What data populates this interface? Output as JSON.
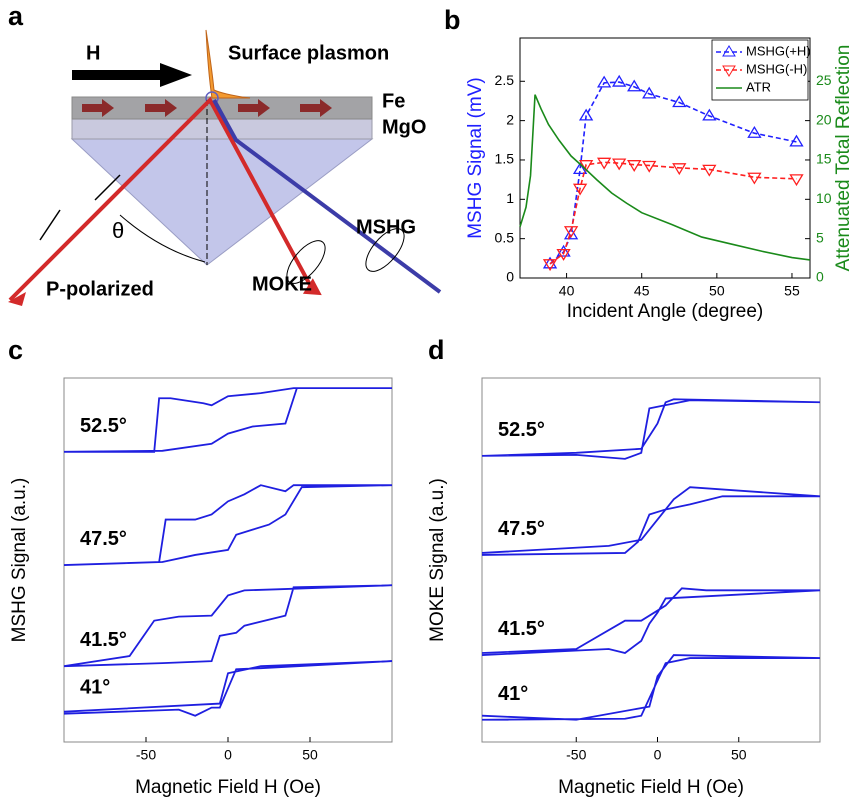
{
  "panel_labels": [
    "a",
    "b",
    "c",
    "d"
  ],
  "diagram": {
    "field": "H",
    "plasmon": "Surface plasmon",
    "film": "Fe",
    "substrate": "MgO",
    "angle": "θ",
    "shg_beam": "MSHG",
    "moke_beam": "MOKE",
    "input_beam": "P-polarized"
  },
  "chart_data": [
    {
      "type": "line",
      "xlabel": "Incident Angle (degree)",
      "ylabel": "MSHG Signal (mV)",
      "y2label": "Attenuated Total Reflection",
      "ylabel_color": "#2020ff",
      "y2label_color": "#1a8a1a",
      "xlim": [
        36.9,
        56.2
      ],
      "xticks": [
        40,
        45,
        50,
        55
      ],
      "ylim": [
        0,
        3.05
      ],
      "yticks": [
        0,
        0.5,
        1,
        1.5,
        2,
        2.5
      ],
      "y2lim": [
        0,
        30.5
      ],
      "y2ticks": [
        0,
        5,
        10,
        15,
        20,
        25
      ],
      "legend": "upper right",
      "series": [
        {
          "name": "MSHG(+H)",
          "color": "#2020ff",
          "linestyle": "dashed",
          "marker": "triangle-up",
          "x": [
            38.9,
            39.8,
            40.3,
            40.9,
            41.3,
            42.5,
            43.5,
            44.5,
            45.5,
            47.5,
            49.5,
            52.5,
            55.3
          ],
          "values": [
            0.18,
            0.33,
            0.55,
            1.38,
            2.06,
            2.48,
            2.49,
            2.43,
            2.34,
            2.23,
            2.06,
            1.84,
            1.73
          ]
        },
        {
          "name": "MSHG(-H)",
          "color": "#ff2020",
          "linestyle": "dashed",
          "marker": "triangle-down",
          "x": [
            38.9,
            39.8,
            40.3,
            40.9,
            41.3,
            42.5,
            43.5,
            44.5,
            45.5,
            47.5,
            49.5,
            52.5,
            55.3
          ],
          "values": [
            0.18,
            0.31,
            0.6,
            1.14,
            1.44,
            1.47,
            1.46,
            1.44,
            1.43,
            1.4,
            1.38,
            1.28,
            1.26
          ]
        },
        {
          "name": "ATR",
          "color": "#1a8a1a",
          "linestyle": "solid",
          "axis": "y2",
          "x": [
            36.9,
            37.3,
            37.6,
            37.9,
            38.3,
            38.8,
            39.5,
            40.3,
            41,
            42,
            43,
            44,
            45,
            47,
            49,
            51,
            53,
            55,
            56.2
          ],
          "values": [
            6.5,
            9,
            13,
            23.3,
            21.5,
            19.5,
            17.5,
            15.5,
            14.3,
            12.5,
            10.8,
            9.5,
            8.3,
            6.8,
            5.2,
            4.3,
            3.4,
            2.6,
            2.3
          ]
        }
      ]
    },
    {
      "type": "line",
      "xlabel": "Magnetic Field H (Oe)",
      "ylabel": "MSHG Signal (a.u.)",
      "xlim": [
        -100,
        100
      ],
      "xticks": [
        -50,
        0,
        50
      ],
      "ylim": [
        0,
        36
      ],
      "series": [
        {
          "name": "52.5°",
          "color": "#1f1fe0",
          "linestyle": "solid",
          "x": [
            -100,
            -40,
            -10,
            0,
            15,
            35,
            42,
            100,
            40,
            20,
            0,
            -10,
            -15,
            -35,
            -42,
            -45,
            -100
          ],
          "values": [
            28.7,
            28.8,
            29.5,
            30.5,
            31.2,
            31.5,
            35,
            35,
            35,
            34.5,
            34.2,
            33.3,
            33.5,
            34,
            34,
            28.7,
            28.7
          ]
        },
        {
          "name": "47.5°",
          "color": "#1f1fe0",
          "linestyle": "solid",
          "x": [
            -100,
            -40,
            -20,
            0,
            5,
            15,
            25,
            35,
            45,
            100,
            40,
            35,
            20,
            10,
            0,
            -10,
            -20,
            -38,
            -42,
            -100
          ],
          "values": [
            17.5,
            17.8,
            18.5,
            19,
            20.5,
            21,
            21.5,
            22.5,
            25.2,
            25.4,
            25.4,
            24.8,
            25.4,
            24.5,
            23.8,
            22.5,
            22,
            22,
            17.8,
            17.5
          ]
        },
        {
          "name": "41.5°",
          "color": "#1f1fe0",
          "linestyle": "solid",
          "x": [
            -100,
            -40,
            -10,
            -5,
            5,
            10,
            35,
            40,
            100,
            30,
            10,
            0,
            -10,
            -30,
            -45,
            -60,
            -100
          ],
          "values": [
            7.5,
            7.8,
            8,
            10.5,
            10.8,
            11.5,
            12.5,
            15.3,
            15.5,
            15.1,
            15,
            14.5,
            12.5,
            12.4,
            12,
            8.5,
            7.5
          ]
        },
        {
          "name": "41°",
          "color": "#1f1fe0",
          "linestyle": "solid",
          "x": [
            -100,
            -30,
            -20,
            -10,
            -5,
            5,
            20,
            100,
            20,
            0,
            -5,
            -100
          ],
          "values": [
            2.8,
            3.2,
            2.6,
            3.4,
            3.4,
            7.2,
            7.3,
            8,
            7.5,
            6.8,
            3.8,
            3
          ]
        }
      ]
    },
    {
      "type": "line",
      "xlabel": "Magnetic Field H (Oe)",
      "ylabel": "MOKE Signal (a.u.)",
      "xlim": [
        -108,
        100
      ],
      "xticks": [
        -50,
        0,
        50
      ],
      "ylim": [
        0,
        36
      ],
      "series": [
        {
          "name": "52.5°",
          "color": "#1f1fe0",
          "linestyle": "solid",
          "x": [
            -108,
            -50,
            -20,
            -10,
            -5,
            20,
            100,
            10,
            5,
            0,
            -10,
            -50,
            -108
          ],
          "values": [
            28.3,
            28.4,
            28,
            28.6,
            33,
            33.8,
            33.6,
            33.9,
            33.6,
            31.5,
            29,
            28.6,
            28.3
          ]
        },
        {
          "name": "47.5°",
          "color": "#1f1fe0",
          "linestyle": "solid",
          "x": [
            -108,
            -20,
            -12,
            -5,
            5,
            20,
            40,
            100,
            20,
            10,
            0,
            -10,
            -30,
            -108
          ],
          "values": [
            18.5,
            18.7,
            19.8,
            22.5,
            23,
            23.5,
            24.3,
            24.3,
            25.2,
            24,
            22,
            20,
            19.4,
            18.7
          ]
        },
        {
          "name": "41.5°",
          "color": "#1f1fe0",
          "linestyle": "solid",
          "x": [
            -108,
            -30,
            -20,
            -10,
            -5,
            0,
            5,
            100,
            30,
            15,
            5,
            -10,
            -20,
            -50,
            -108
          ],
          "values": [
            8.6,
            9.2,
            8.8,
            10,
            11.7,
            12.8,
            14.2,
            15,
            15,
            15.2,
            13.5,
            12,
            12,
            9.2,
            8.8
          ]
        },
        {
          "name": "41°",
          "color": "#1f1fe0",
          "linestyle": "solid",
          "x": [
            -108,
            -20,
            -10,
            5,
            20,
            100,
            10,
            0,
            -5,
            -50,
            -108
          ],
          "values": [
            2.2,
            2.3,
            2.6,
            7.8,
            8.3,
            8.3,
            8.6,
            6.5,
            3.5,
            2.2,
            2.6
          ]
        }
      ]
    }
  ]
}
